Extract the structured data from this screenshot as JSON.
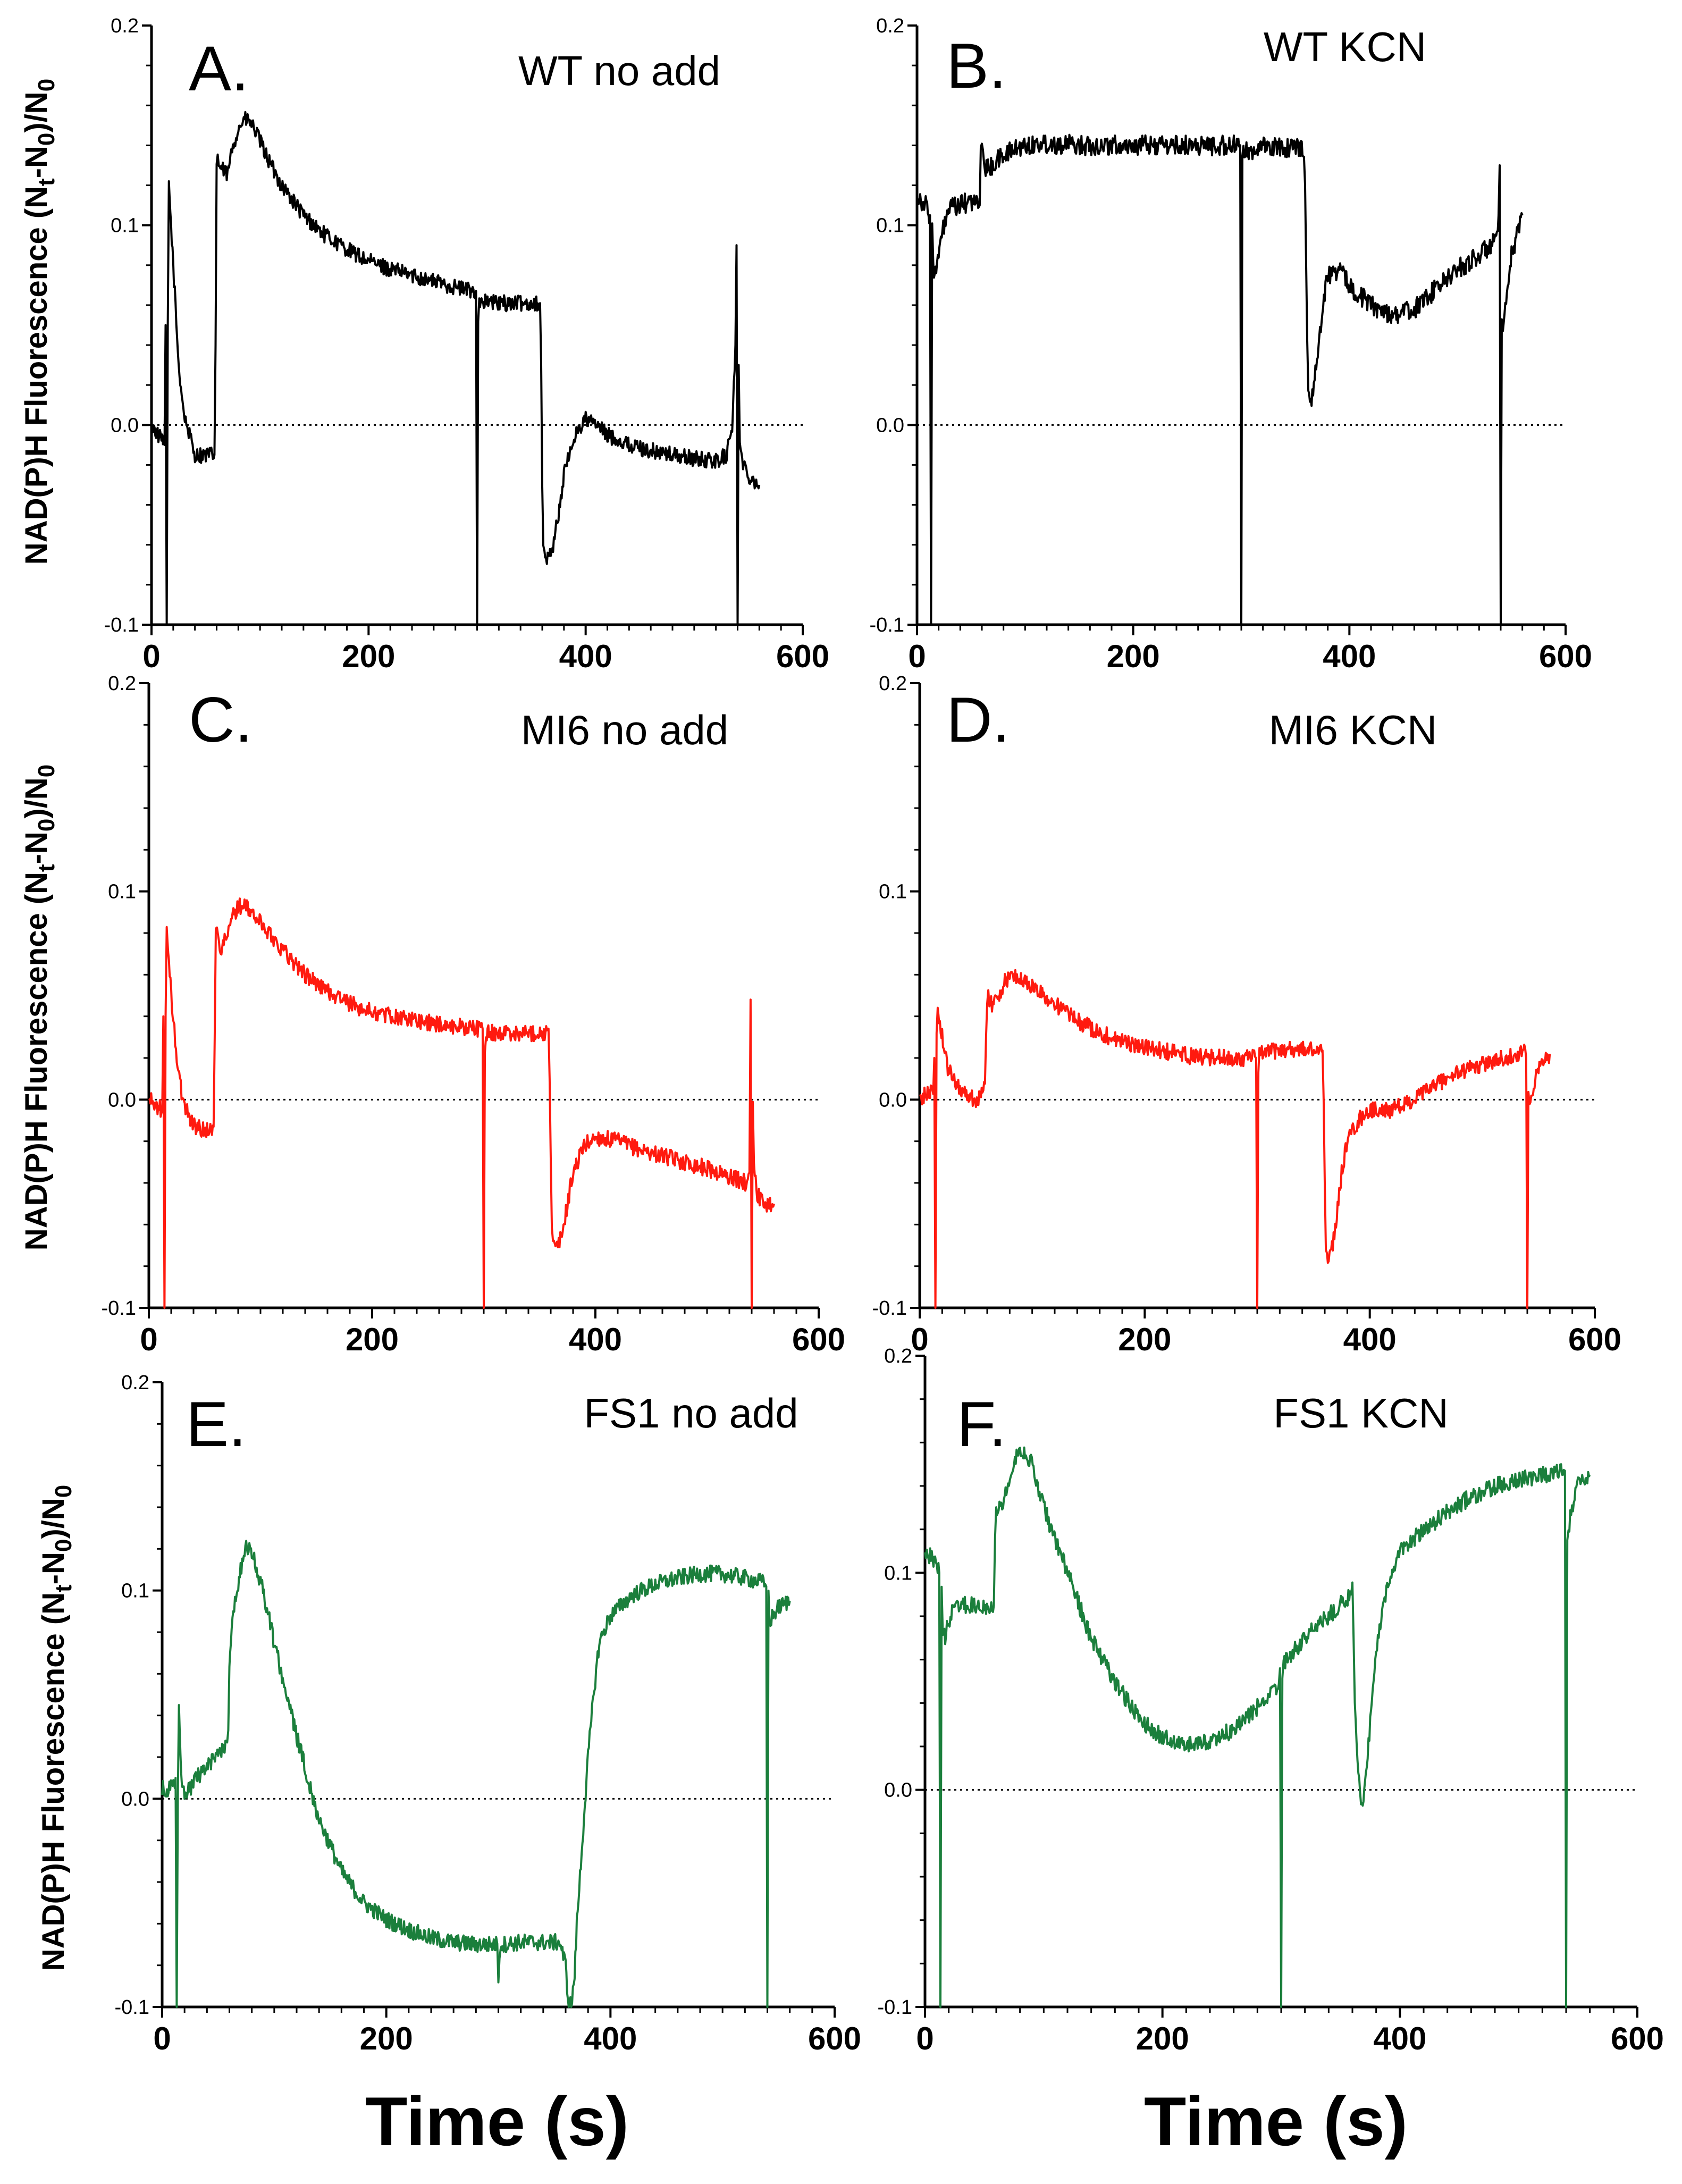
{
  "figure": {
    "xlabel": "Time (s)",
    "ylabel_prefix": "NAD(P)H Fluorescence (N",
    "ylabel_sub_t": "t",
    "ylabel_mid": "-N",
    "ylabel_sub_0a": "0",
    "ylabel_close": ")/N",
    "ylabel_sub_0b": "0"
  },
  "chart_data": [
    {
      "id": "A",
      "letter": "A.",
      "title": "WT no add",
      "type": "line",
      "color": "#000000",
      "xlim": [
        0,
        600
      ],
      "ylim": [
        -0.1,
        0.2
      ],
      "xticks": [
        "0",
        "200",
        "400",
        "600"
      ],
      "yticks": [
        "-0.1",
        "0.0",
        "0.1",
        "0.2"
      ],
      "reference_line_y": 0.0,
      "noise": 0.004,
      "x": [
        0,
        12,
        13,
        14,
        15,
        16,
        20,
        25,
        30,
        40,
        50,
        58,
        59,
        60,
        61,
        62,
        65,
        70,
        75,
        80,
        85,
        90,
        95,
        100,
        110,
        120,
        140,
        160,
        180,
        200,
        220,
        240,
        260,
        280,
        298,
        299,
        300,
        301,
        302,
        320,
        340,
        358,
        359,
        360,
        361,
        362,
        365,
        370,
        375,
        380,
        390,
        400,
        410,
        420,
        440,
        460,
        480,
        500,
        520,
        530,
        535,
        538,
        539,
        540,
        541,
        542,
        545,
        550,
        560
      ],
      "y": [
        0.0,
        -0.01,
        0.05,
        -0.1,
        0.05,
        0.12,
        0.08,
        0.03,
        0.005,
        -0.015,
        -0.015,
        -0.015,
        0.04,
        0.13,
        0.135,
        0.13,
        0.128,
        0.125,
        0.14,
        0.148,
        0.153,
        0.152,
        0.148,
        0.142,
        0.13,
        0.12,
        0.105,
        0.095,
        0.088,
        0.082,
        0.078,
        0.075,
        0.072,
        0.069,
        0.067,
        0.067,
        -0.1,
        0.055,
        0.062,
        0.061,
        0.061,
        0.061,
        0.03,
        -0.03,
        -0.06,
        -0.067,
        -0.067,
        -0.06,
        -0.045,
        -0.025,
        -0.005,
        0.003,
        0.0,
        -0.005,
        -0.01,
        -0.013,
        -0.015,
        -0.017,
        -0.018,
        -0.015,
        0.0,
        0.04,
        0.09,
        -0.1,
        0.03,
        -0.01,
        -0.02,
        -0.025,
        -0.03
      ]
    },
    {
      "id": "B",
      "letter": "B.",
      "title": "WT KCN",
      "type": "line",
      "color": "#000000",
      "xlim": [
        0,
        600
      ],
      "ylim": [
        -0.1,
        0.2
      ],
      "xticks": [
        "0",
        "200",
        "400",
        "600"
      ],
      "yticks": [
        "-0.1",
        "0.0",
        "0.1",
        "0.2"
      ],
      "reference_line_y": 0.0,
      "noise": 0.005,
      "x": [
        0,
        8,
        12,
        13,
        14,
        15,
        17,
        20,
        25,
        30,
        40,
        50,
        58,
        59,
        60,
        61,
        62,
        65,
        70,
        80,
        90,
        100,
        120,
        150,
        200,
        250,
        298,
        299,
        300,
        301,
        302,
        320,
        340,
        358,
        359,
        360,
        361,
        362,
        365,
        370,
        375,
        380,
        390,
        400,
        420,
        440,
        460,
        480,
        500,
        520,
        535,
        538,
        539,
        540,
        541,
        542,
        545,
        550,
        560
      ],
      "y": [
        0.115,
        0.11,
        0.105,
        -0.1,
        0.1,
        0.08,
        0.075,
        0.085,
        0.1,
        0.108,
        0.11,
        0.112,
        0.11,
        0.14,
        0.145,
        0.135,
        0.13,
        0.128,
        0.13,
        0.135,
        0.138,
        0.14,
        0.141,
        0.14,
        0.14,
        0.14,
        0.14,
        0.14,
        -0.1,
        0.13,
        0.137,
        0.139,
        0.139,
        0.139,
        0.12,
        0.08,
        0.04,
        0.02,
        0.012,
        0.03,
        0.06,
        0.075,
        0.078,
        0.07,
        0.06,
        0.055,
        0.058,
        0.068,
        0.078,
        0.085,
        0.092,
        0.1,
        0.13,
        -0.1,
        0.05,
        0.045,
        0.06,
        0.085,
        0.105
      ]
    },
    {
      "id": "C",
      "letter": "C.",
      "title": "MI6 no add",
      "type": "line",
      "color": "#ff1a0f",
      "xlim": [
        0,
        600
      ],
      "ylim": [
        -0.1,
        0.2
      ],
      "xticks": [
        "0",
        "200",
        "400",
        "600"
      ],
      "yticks": [
        "-0.1",
        "0.0",
        "0.1",
        "0.2"
      ],
      "reference_line_y": 0.0,
      "noise": 0.004,
      "x": [
        0,
        12,
        13,
        14,
        15,
        16,
        20,
        25,
        30,
        40,
        50,
        58,
        59,
        60,
        61,
        62,
        65,
        70,
        75,
        80,
        85,
        90,
        100,
        120,
        140,
        160,
        180,
        200,
        220,
        240,
        260,
        280,
        298,
        299,
        300,
        301,
        302,
        320,
        340,
        358,
        359,
        360,
        361,
        362,
        365,
        370,
        375,
        380,
        390,
        400,
        420,
        440,
        460,
        480,
        500,
        520,
        535,
        538,
        539,
        540,
        541,
        542,
        545,
        550,
        560
      ],
      "y": [
        0.0,
        -0.005,
        0.04,
        -0.1,
        0.04,
        0.08,
        0.05,
        0.02,
        0.0,
        -0.012,
        -0.015,
        -0.013,
        0.03,
        0.08,
        0.08,
        0.077,
        0.073,
        0.078,
        0.088,
        0.093,
        0.093,
        0.091,
        0.085,
        0.072,
        0.06,
        0.052,
        0.046,
        0.042,
        0.04,
        0.038,
        0.036,
        0.035,
        0.034,
        0.034,
        -0.1,
        0.025,
        0.032,
        0.032,
        0.032,
        0.032,
        0.01,
        -0.03,
        -0.06,
        -0.07,
        -0.072,
        -0.065,
        -0.05,
        -0.035,
        -0.022,
        -0.018,
        -0.02,
        -0.024,
        -0.027,
        -0.03,
        -0.033,
        -0.037,
        -0.04,
        -0.035,
        0.048,
        -0.1,
        0.0,
        -0.03,
        -0.045,
        -0.05,
        -0.05
      ]
    },
    {
      "id": "D",
      "letter": "D.",
      "title": "MI6 KCN",
      "type": "line",
      "color": "#ff1a0f",
      "xlim": [
        0,
        600
      ],
      "ylim": [
        -0.1,
        0.2
      ],
      "xticks": [
        "0",
        "200",
        "400",
        "600"
      ],
      "yticks": [
        "-0.1",
        "0.0",
        "0.1",
        "0.2"
      ],
      "reference_line_y": 0.0,
      "noise": 0.004,
      "x": [
        0,
        12,
        13,
        14,
        15,
        16,
        20,
        25,
        30,
        40,
        50,
        58,
        59,
        60,
        61,
        62,
        65,
        70,
        75,
        80,
        85,
        90,
        100,
        120,
        140,
        160,
        180,
        200,
        220,
        240,
        260,
        280,
        298,
        299,
        300,
        301,
        302,
        320,
        340,
        358,
        359,
        360,
        361,
        362,
        365,
        370,
        375,
        380,
        390,
        400,
        420,
        440,
        460,
        480,
        500,
        520,
        535,
        538,
        539,
        540,
        541,
        542,
        545,
        550,
        560
      ],
      "y": [
        0.0,
        0.005,
        0.02,
        -0.1,
        0.03,
        0.045,
        0.03,
        0.015,
        0.01,
        0.003,
        0.0,
        0.005,
        0.03,
        0.05,
        0.052,
        0.048,
        0.045,
        0.05,
        0.056,
        0.059,
        0.059,
        0.058,
        0.054,
        0.046,
        0.038,
        0.032,
        0.028,
        0.025,
        0.023,
        0.021,
        0.02,
        0.02,
        0.02,
        0.02,
        -0.1,
        0.015,
        0.022,
        0.024,
        0.024,
        0.024,
        0.0,
        -0.04,
        -0.07,
        -0.075,
        -0.075,
        -0.06,
        -0.035,
        -0.02,
        -0.01,
        -0.005,
        -0.005,
        0.0,
        0.008,
        0.013,
        0.017,
        0.02,
        0.023,
        0.025,
        0.02,
        -0.1,
        0.0,
        -0.005,
        0.005,
        0.015,
        0.022
      ]
    },
    {
      "id": "E",
      "letter": "E.",
      "title": "FS1 no add",
      "type": "line",
      "color": "#1b7f3c",
      "xlim": [
        0,
        600
      ],
      "ylim": [
        -0.1,
        0.2
      ],
      "xticks": [
        "0",
        "200",
        "400",
        "600"
      ],
      "yticks": [
        "-0.1",
        "0.0",
        "0.1",
        "0.2"
      ],
      "reference_line_y": 0.0,
      "noise": 0.004,
      "x": [
        0,
        10,
        12,
        13,
        14,
        15,
        17,
        20,
        25,
        30,
        40,
        50,
        55,
        58,
        59,
        60,
        62,
        65,
        70,
        75,
        80,
        90,
        100,
        120,
        140,
        160,
        180,
        200,
        220,
        240,
        260,
        280,
        298,
        299,
        300,
        301,
        302,
        320,
        340,
        355,
        360,
        362,
        365,
        368,
        370,
        375,
        380,
        385,
        390,
        400,
        420,
        440,
        460,
        480,
        500,
        520,
        535,
        538,
        539,
        540,
        541,
        542,
        545,
        550,
        560
      ],
      "y": [
        0.005,
        0.005,
        0.01,
        -0.1,
        0.0,
        0.045,
        0.01,
        0.0,
        0.005,
        0.01,
        0.015,
        0.022,
        0.025,
        0.028,
        0.03,
        0.06,
        0.085,
        0.095,
        0.11,
        0.12,
        0.118,
        0.1,
        0.075,
        0.03,
        -0.01,
        -0.035,
        -0.05,
        -0.058,
        -0.063,
        -0.067,
        -0.069,
        -0.07,
        -0.07,
        -0.07,
        -0.085,
        -0.075,
        -0.07,
        -0.069,
        -0.069,
        -0.069,
        -0.08,
        -0.095,
        -0.1,
        -0.085,
        -0.06,
        -0.02,
        0.02,
        0.05,
        0.075,
        0.088,
        0.098,
        0.103,
        0.106,
        0.108,
        0.108,
        0.106,
        0.104,
        0.103,
        0.102,
        -0.1,
        0.098,
        0.085,
        0.088,
        0.092,
        0.095
      ]
    },
    {
      "id": "F",
      "letter": "F.",
      "title": "FS1 KCN",
      "type": "line",
      "color": "#1b7f3c",
      "xlim": [
        0,
        600
      ],
      "ylim": [
        -0.1,
        0.2
      ],
      "xticks": [
        "0",
        "200",
        "400",
        "600"
      ],
      "yticks": [
        "-0.1",
        "0.0",
        "0.1",
        "0.2"
      ],
      "reference_line_y": 0.0,
      "noise": 0.004,
      "x": [
        0,
        10,
        12,
        13,
        14,
        15,
        17,
        20,
        25,
        30,
        40,
        50,
        58,
        59,
        60,
        62,
        65,
        70,
        75,
        80,
        90,
        100,
        120,
        140,
        160,
        180,
        200,
        220,
        240,
        260,
        280,
        298,
        299,
        300,
        301,
        302,
        320,
        340,
        358,
        359,
        360,
        361,
        362,
        365,
        368,
        370,
        375,
        380,
        390,
        400,
        420,
        440,
        460,
        480,
        500,
        520,
        535,
        538,
        539,
        540,
        541,
        542,
        545,
        550,
        560
      ],
      "y": [
        0.11,
        0.105,
        0.1,
        -0.1,
        0.09,
        0.075,
        0.07,
        0.078,
        0.085,
        0.085,
        0.085,
        0.085,
        0.085,
        0.12,
        0.13,
        0.13,
        0.132,
        0.14,
        0.15,
        0.158,
        0.15,
        0.13,
        0.1,
        0.07,
        0.05,
        0.033,
        0.024,
        0.021,
        0.022,
        0.028,
        0.038,
        0.048,
        0.056,
        -0.1,
        0.05,
        0.058,
        0.07,
        0.08,
        0.09,
        0.092,
        0.093,
        0.07,
        0.04,
        0.005,
        -0.007,
        0.0,
        0.03,
        0.065,
        0.095,
        0.11,
        0.12,
        0.128,
        0.135,
        0.14,
        0.143,
        0.145,
        0.147,
        0.147,
        0.147,
        -0.1,
        0.115,
        0.12,
        0.13,
        0.14,
        0.145
      ]
    }
  ]
}
